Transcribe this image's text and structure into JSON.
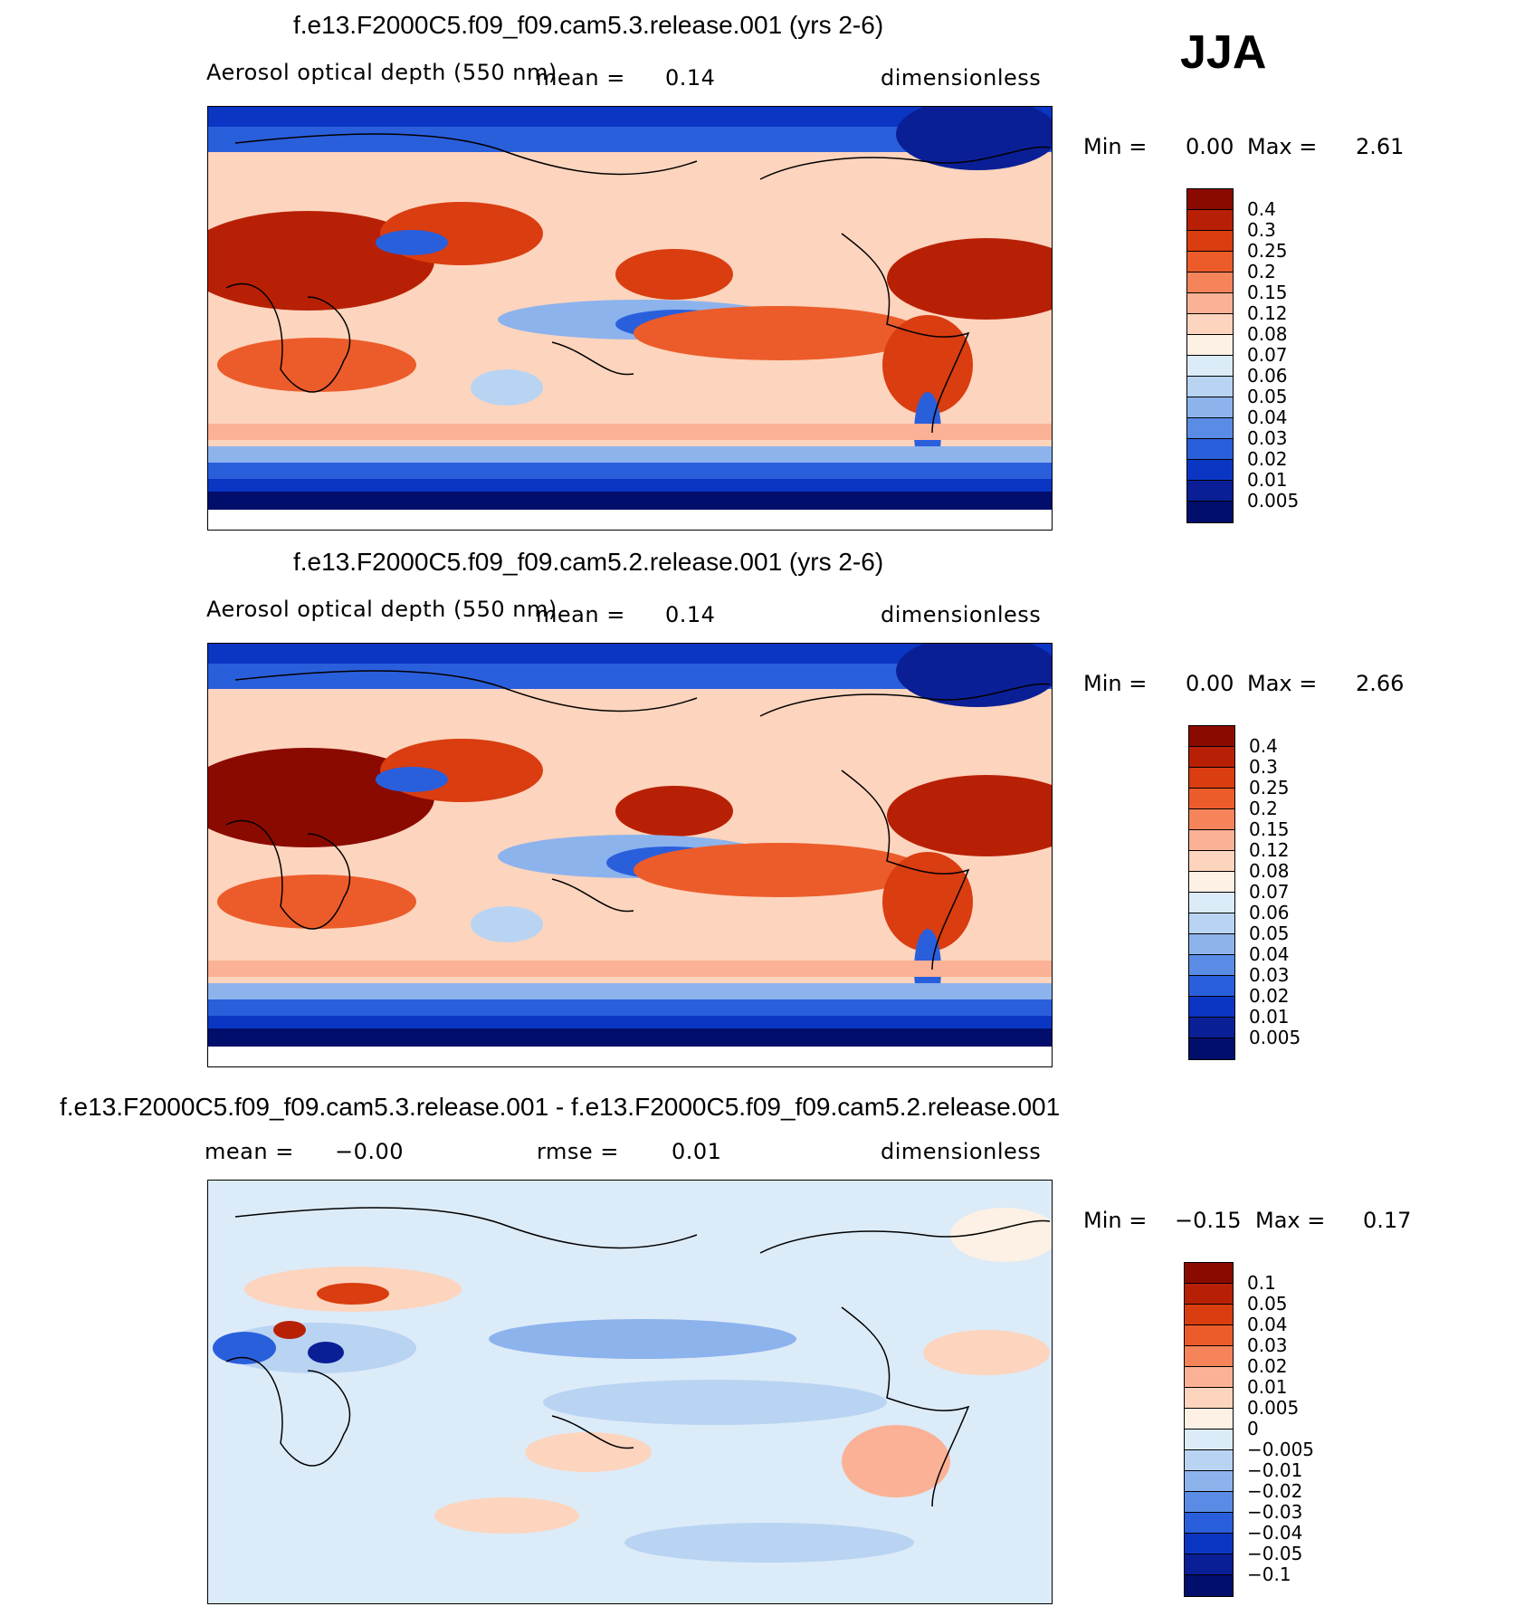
{
  "season": "JJA",
  "panels": [
    {
      "title": "f.e13.F2000C5.f09_f09.cam5.3.release.001 (yrs 2-6)",
      "variable": "Aerosol optical depth (550 nm)",
      "stat_label": "mean =",
      "stat_value": "0.14",
      "units": "dimensionless",
      "min_label": "Min =",
      "min_value": "0.00",
      "max_label": "Max =",
      "max_value": "2.61",
      "colorbar_labels": [
        "0.4",
        "0.3",
        "0.25",
        "0.2",
        "0.15",
        "0.12",
        "0.08",
        "0.07",
        "0.06",
        "0.05",
        "0.04",
        "0.03",
        "0.02",
        "0.01",
        "0.005"
      ]
    },
    {
      "title": "f.e13.F2000C5.f09_f09.cam5.2.release.001 (yrs 2-6)",
      "variable": "Aerosol optical depth (550 nm)",
      "stat_label": "mean =",
      "stat_value": "0.14",
      "units": "dimensionless",
      "min_label": "Min =",
      "min_value": "0.00",
      "max_label": "Max =",
      "max_value": "2.66",
      "colorbar_labels": [
        "0.4",
        "0.3",
        "0.25",
        "0.2",
        "0.15",
        "0.12",
        "0.08",
        "0.07",
        "0.06",
        "0.05",
        "0.04",
        "0.03",
        "0.02",
        "0.01",
        "0.005"
      ]
    },
    {
      "title": "f.e13.F2000C5.f09_f09.cam5.3.release.001 - f.e13.F2000C5.f09_f09.cam5.2.release.001",
      "mean_label": "mean =",
      "mean_value": "−0.00",
      "rmse_label": "rmse =",
      "rmse_value": "0.01",
      "units": "dimensionless",
      "min_label": "Min =",
      "min_value": "−0.15",
      "max_label": "Max =",
      "max_value": "0.17",
      "colorbar_labels": [
        "0.1",
        "0.05",
        "0.04",
        "0.03",
        "0.02",
        "0.01",
        "0.005",
        "0",
        "−0.005",
        "−0.01",
        "−0.02",
        "−0.03",
        "−0.04",
        "−0.05",
        "−0.1"
      ]
    }
  ],
  "colors": {
    "seq_colorbar": [
      "#8b0a00",
      "#b82005",
      "#d93d10",
      "#ec5c2a",
      "#f5845a",
      "#fbb195",
      "#fdd4bd",
      "#fdf0e4",
      "#dcebf8",
      "#b9d4f2",
      "#8db3ed",
      "#5a8ce6",
      "#2a5fdc",
      "#0b36c4",
      "#0a1f96",
      "#020e6b"
    ],
    "div_colorbar": [
      "#8b0a00",
      "#b82005",
      "#d93d10",
      "#ec5c2a",
      "#f5845a",
      "#fbb195",
      "#fdd4bd",
      "#fdf0e4",
      "#dcebf8",
      "#b9d4f2",
      "#8db3ed",
      "#5a8ce6",
      "#2a5fdc",
      "#0b36c4",
      "#0a1f96",
      "#020e6b"
    ]
  }
}
